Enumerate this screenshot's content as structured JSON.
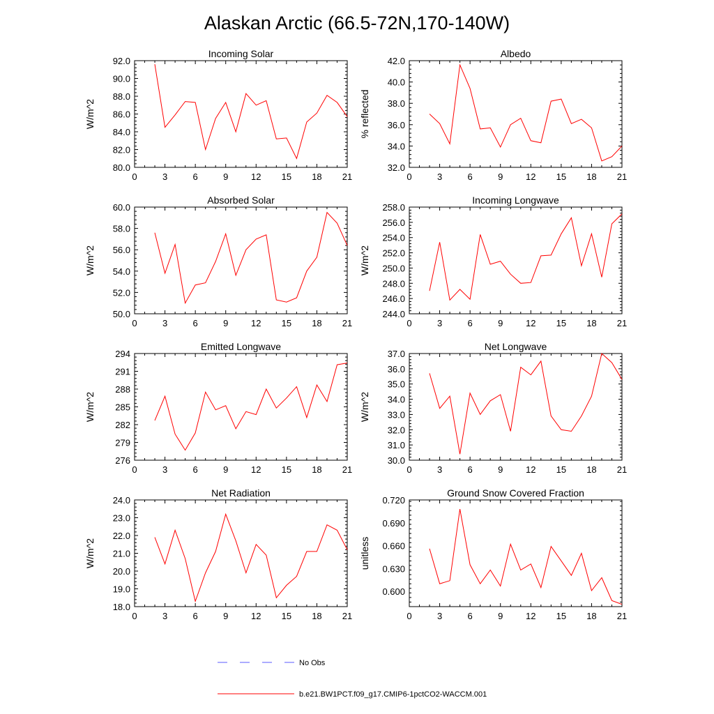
{
  "figure": {
    "title": "Alaskan Arctic (66.5-72N,170-140W)",
    "legend": {
      "obs_label": "No Obs",
      "model_label": "b.e21.BW1PCT.f09_g17.CMIP6-1pctCO2-WACCM.001",
      "obs_color": "#5a5aff",
      "model_color": "#ff0000"
    }
  },
  "chart_data": [
    {
      "type": "line",
      "title": "Incoming Solar",
      "ylabel": "W/m^2",
      "xlim": [
        0,
        21
      ],
      "ylim": [
        80,
        92
      ],
      "xticks": [
        0,
        3,
        6,
        9,
        12,
        15,
        18,
        21
      ],
      "yticks": [
        80,
        82,
        84,
        86,
        88,
        90,
        92
      ],
      "ytick_labels": [
        "80.0",
        "82.0",
        "84.0",
        "86.0",
        "88.0",
        "90.0",
        "92.0"
      ],
      "series": [
        {
          "x": [
            2,
            3,
            4,
            5,
            6,
            7,
            8,
            9,
            10,
            11,
            12,
            13,
            14,
            15,
            16,
            17,
            18,
            19,
            20,
            21
          ],
          "values": [
            91.6,
            84.5,
            85.9,
            87.4,
            87.3,
            82.0,
            85.5,
            87.3,
            84.0,
            88.3,
            87.0,
            87.5,
            83.2,
            83.3,
            81.0,
            85.1,
            86.1,
            88.1,
            87.3,
            85.7
          ]
        }
      ]
    },
    {
      "type": "line",
      "title": "Albedo",
      "ylabel": "% reflected",
      "xlim": [
        0,
        21
      ],
      "ylim": [
        32,
        42
      ],
      "xticks": [
        0,
        3,
        6,
        9,
        12,
        15,
        18,
        21
      ],
      "yticks": [
        32,
        34,
        36,
        38,
        40,
        42
      ],
      "ytick_labels": [
        "32.0",
        "34.0",
        "36.0",
        "38.0",
        "40.0",
        "42.0"
      ],
      "series": [
        {
          "x": [
            2,
            3,
            4,
            5,
            6,
            7,
            8,
            9,
            10,
            11,
            12,
            13,
            14,
            15,
            16,
            17,
            18,
            19,
            20,
            21
          ],
          "values": [
            37.0,
            36.1,
            34.2,
            41.6,
            39.4,
            35.6,
            35.7,
            33.9,
            36.0,
            36.6,
            34.5,
            34.3,
            38.2,
            38.4,
            36.1,
            36.5,
            35.7,
            32.6,
            33.0,
            34.0
          ]
        }
      ]
    },
    {
      "type": "line",
      "title": "Absorbed Solar",
      "ylabel": "W/m^2",
      "xlim": [
        0,
        21
      ],
      "ylim": [
        50,
        60
      ],
      "xticks": [
        0,
        3,
        6,
        9,
        12,
        15,
        18,
        21
      ],
      "yticks": [
        50,
        52,
        54,
        56,
        58,
        60
      ],
      "ytick_labels": [
        "50.0",
        "52.0",
        "54.0",
        "56.0",
        "58.0",
        "60.0"
      ],
      "series": [
        {
          "x": [
            2,
            3,
            4,
            5,
            6,
            7,
            8,
            9,
            10,
            11,
            12,
            13,
            14,
            15,
            16,
            17,
            18,
            19,
            20,
            21
          ],
          "values": [
            57.6,
            53.8,
            56.5,
            51.0,
            52.7,
            52.9,
            54.9,
            57.5,
            53.6,
            56.0,
            57.0,
            57.4,
            51.3,
            51.1,
            51.5,
            54.0,
            55.3,
            59.5,
            58.5,
            56.4
          ]
        }
      ]
    },
    {
      "type": "line",
      "title": "Incoming Longwave",
      "ylabel": "W/m^2",
      "xlim": [
        0,
        21
      ],
      "ylim": [
        244,
        258
      ],
      "xticks": [
        0,
        3,
        6,
        9,
        12,
        15,
        18,
        21
      ],
      "yticks": [
        244,
        246,
        248,
        250,
        252,
        254,
        256,
        258
      ],
      "ytick_labels": [
        "244.0",
        "246.0",
        "248.0",
        "250.0",
        "252.0",
        "254.0",
        "256.0",
        "258.0"
      ],
      "series": [
        {
          "x": [
            2,
            3,
            4,
            5,
            6,
            7,
            8,
            9,
            10,
            11,
            12,
            13,
            14,
            15,
            16,
            17,
            18,
            19,
            20,
            21
          ],
          "values": [
            247.0,
            253.4,
            245.8,
            247.2,
            245.9,
            254.4,
            250.5,
            250.9,
            249.2,
            248.0,
            248.1,
            251.6,
            251.7,
            254.5,
            256.6,
            250.3,
            254.5,
            248.8,
            255.8,
            257.1
          ]
        }
      ]
    },
    {
      "type": "line",
      "title": "Emitted Longwave",
      "ylabel": "W/m^2",
      "xlim": [
        0,
        21
      ],
      "ylim": [
        276,
        294
      ],
      "xticks": [
        0,
        3,
        6,
        9,
        12,
        15,
        18,
        21
      ],
      "yticks": [
        276,
        279,
        282,
        285,
        288,
        291,
        294
      ],
      "ytick_labels": [
        "276",
        "279",
        "282",
        "285",
        "288",
        "291",
        "294"
      ],
      "series": [
        {
          "x": [
            2,
            3,
            4,
            5,
            6,
            7,
            8,
            9,
            10,
            11,
            12,
            13,
            14,
            15,
            16,
            17,
            18,
            19,
            20,
            21
          ],
          "values": [
            282.7,
            286.8,
            280.4,
            277.7,
            280.6,
            287.5,
            284.5,
            285.2,
            281.3,
            284.2,
            283.7,
            288.0,
            284.8,
            286.5,
            288.4,
            283.2,
            288.7,
            285.9,
            292.1,
            292.4
          ]
        }
      ]
    },
    {
      "type": "line",
      "title": "Net Longwave",
      "ylabel": "W/m^2",
      "xlim": [
        0,
        21
      ],
      "ylim": [
        30,
        37
      ],
      "xticks": [
        0,
        3,
        6,
        9,
        12,
        15,
        18,
        21
      ],
      "yticks": [
        30,
        31,
        32,
        33,
        34,
        35,
        36,
        37
      ],
      "ytick_labels": [
        "30.0",
        "31.0",
        "32.0",
        "33.0",
        "34.0",
        "35.0",
        "36.0",
        "37.0"
      ],
      "series": [
        {
          "x": [
            2,
            3,
            4,
            5,
            6,
            7,
            8,
            9,
            10,
            11,
            12,
            13,
            14,
            15,
            16,
            17,
            18,
            19,
            20,
            21
          ],
          "values": [
            35.7,
            33.4,
            34.2,
            30.4,
            34.4,
            33.0,
            33.9,
            34.3,
            31.9,
            36.1,
            35.6,
            36.5,
            32.9,
            32.0,
            31.9,
            32.9,
            34.2,
            37.0,
            36.4,
            35.3
          ]
        }
      ]
    },
    {
      "type": "line",
      "title": "Net Radiation",
      "ylabel": "W/m^2",
      "xlim": [
        0,
        21
      ],
      "ylim": [
        18,
        24
      ],
      "xticks": [
        0,
        3,
        6,
        9,
        12,
        15,
        18,
        21
      ],
      "yticks": [
        18,
        19,
        20,
        21,
        22,
        23,
        24
      ],
      "ytick_labels": [
        "18.0",
        "19.0",
        "20.0",
        "21.0",
        "22.0",
        "23.0",
        "24.0"
      ],
      "series": [
        {
          "x": [
            2,
            3,
            4,
            5,
            6,
            7,
            8,
            9,
            10,
            11,
            12,
            13,
            14,
            15,
            16,
            17,
            18,
            19,
            20,
            21
          ],
          "values": [
            21.9,
            20.4,
            22.3,
            20.7,
            18.3,
            19.9,
            21.1,
            23.2,
            21.7,
            19.9,
            21.5,
            20.9,
            18.5,
            19.2,
            19.7,
            21.1,
            21.1,
            22.6,
            22.3,
            21.2
          ]
        }
      ]
    },
    {
      "type": "line",
      "title": "Ground Snow Covered Fraction",
      "ylabel": "unitless",
      "xlim": [
        0,
        21
      ],
      "ylim": [
        0.58,
        0.72
      ],
      "xticks": [
        0,
        3,
        6,
        9,
        12,
        15,
        18,
        21
      ],
      "yticks": [
        0.6,
        0.63,
        0.66,
        0.69,
        0.72
      ],
      "ytick_labels": [
        "0.600",
        "0.630",
        "0.660",
        "0.690",
        "0.720"
      ],
      "series": [
        {
          "x": [
            2,
            3,
            4,
            5,
            6,
            7,
            8,
            9,
            10,
            11,
            12,
            13,
            14,
            15,
            16,
            17,
            18,
            19,
            20,
            21
          ],
          "values": [
            0.656,
            0.61,
            0.614,
            0.708,
            0.635,
            0.61,
            0.628,
            0.607,
            0.662,
            0.628,
            0.636,
            0.605,
            0.659,
            0.64,
            0.621,
            0.65,
            0.601,
            0.618,
            0.588,
            0.583
          ]
        }
      ]
    }
  ]
}
